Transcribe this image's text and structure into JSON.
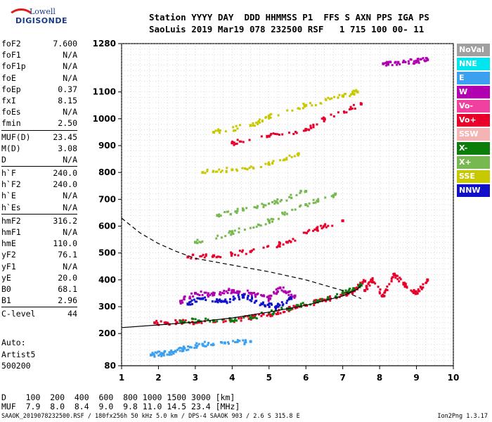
{
  "logo": {
    "line1": "Lowell",
    "line2": "DIGISONDE"
  },
  "header": {
    "line1": "Station YYYY DAY  DDD HHMMSS P1  FFS S AXN PPS IGA PS",
    "line2": "SaoLuis 2019 Mar19 078 232500 RSF   1 715 100 00- 11"
  },
  "params_groups": [
    [
      {
        "name": "foF2",
        "value": "7.600"
      },
      {
        "name": "foF1",
        "value": "N/A"
      },
      {
        "name": "foF1p",
        "value": "N/A"
      },
      {
        "name": "foE",
        "value": "N/A"
      },
      {
        "name": "foEp",
        "value": "0.37"
      },
      {
        "name": "fxI",
        "value": "8.15"
      },
      {
        "name": "foEs",
        "value": "N/A"
      },
      {
        "name": "fmin",
        "value": "2.50"
      }
    ],
    [
      {
        "name": "MUF(D)",
        "value": "23.45"
      },
      {
        "name": "M(D)",
        "value": "3.08"
      },
      {
        "name": "D",
        "value": "N/A"
      }
    ],
    [
      {
        "name": "h`F",
        "value": "240.0"
      },
      {
        "name": "h`F2",
        "value": "240.0"
      },
      {
        "name": "h`E",
        "value": "N/A"
      },
      {
        "name": "h`Es",
        "value": "N/A"
      }
    ],
    [
      {
        "name": "hmF2",
        "value": "316.2"
      },
      {
        "name": "hmF1",
        "value": "N/A"
      },
      {
        "name": "hmE",
        "value": "110.0"
      },
      {
        "name": "yF2",
        "value": "76.1"
      },
      {
        "name": "yF1",
        "value": "N/A"
      },
      {
        "name": "yE",
        "value": "20.0"
      },
      {
        "name": "B0",
        "value": "68.1"
      },
      {
        "name": "B1",
        "value": "2.96"
      }
    ],
    [
      {
        "name": "C-level",
        "value": "44"
      }
    ]
  ],
  "auto": {
    "line1": "Auto:",
    "line2": "Artist5",
    "line3": "500200"
  },
  "dmuf": {
    "d_line": "D    100  200  400  600  800 1000 1500 3000 [km]",
    "muf_line": "MUF  7.9  8.0  8.4  9.0  9.8 11.0 14.5 23.4 [MHz]"
  },
  "footer": {
    "text": "SAAOK_2019078232500.RSF / 180fx256h 50 kHz 5.0 km / DPS-4 SAAOK 903 / 2.6 S 315.8 E",
    "version": "Ion2Png 1.3.17"
  },
  "legend": [
    {
      "label": "NoVal",
      "color": "#a0a0a0"
    },
    {
      "label": "NNE",
      "color": "#00e5ee"
    },
    {
      "label": "E",
      "color": "#3ca0f0"
    },
    {
      "label": "W",
      "color": "#b000b0"
    },
    {
      "label": "Vo-",
      "color": "#f040a0"
    },
    {
      "label": "Vo+",
      "color": "#e8002a"
    },
    {
      "label": "SSW",
      "color": "#f4b4b4"
    },
    {
      "label": "X-",
      "color": "#0a7d0a"
    },
    {
      "label": "X+",
      "color": "#78b850"
    },
    {
      "label": "SSE",
      "color": "#c8c800"
    },
    {
      "label": "NNW",
      "color": "#1010c8"
    }
  ],
  "chart_data": {
    "type": "scatter",
    "xlim": [
      1,
      10
    ],
    "ylim": [
      80,
      1280
    ],
    "x_ticks": [
      1,
      2,
      3,
      4,
      5,
      6,
      7,
      8,
      9,
      10
    ],
    "y_ticks": [
      80,
      200,
      300,
      400,
      500,
      600,
      700,
      800,
      900,
      1000,
      1100,
      1280
    ],
    "grid": true,
    "legend_position": "right",
    "traces": [
      {
        "name": "o-trace",
        "color": "#e8002a",
        "points": [
          [
            1.9,
            240
          ],
          [
            2.5,
            241
          ],
          [
            3.5,
            244
          ],
          [
            4.5,
            258
          ],
          [
            5.0,
            272
          ],
          [
            5.5,
            290
          ],
          [
            6.0,
            305
          ],
          [
            6.5,
            325
          ],
          [
            7.0,
            345
          ],
          [
            7.3,
            360
          ],
          [
            7.6,
            395
          ]
        ]
      },
      {
        "name": "x-trace",
        "color": "#0a7d0a",
        "points": [
          [
            2.6,
            246
          ],
          [
            3.5,
            248
          ],
          [
            4.5,
            260
          ],
          [
            5.5,
            292
          ],
          [
            6.3,
            318
          ],
          [
            7.0,
            350
          ],
          [
            7.5,
            380
          ]
        ]
      },
      {
        "name": "W-spread",
        "color": "#b000b0",
        "points": [
          [
            2.6,
            320
          ],
          [
            3.0,
            350
          ],
          [
            3.5,
            345
          ],
          [
            4.0,
            360
          ],
          [
            4.5,
            350
          ],
          [
            5.0,
            330
          ],
          [
            5.3,
            370
          ],
          [
            5.7,
            340
          ]
        ]
      },
      {
        "name": "NNW-spread",
        "color": "#1010c8",
        "points": [
          [
            2.8,
            310
          ],
          [
            3.2,
            330
          ],
          [
            3.8,
            320
          ],
          [
            4.3,
            340
          ],
          [
            4.8,
            310
          ],
          [
            5.2,
            300
          ],
          [
            5.6,
            330
          ]
        ]
      },
      {
        "name": "spread-F",
        "color": "#e8002a",
        "points": [
          [
            7.6,
            360
          ],
          [
            7.8,
            400
          ],
          [
            8.1,
            340
          ],
          [
            8.4,
            420
          ],
          [
            8.7,
            380
          ],
          [
            9.0,
            350
          ],
          [
            9.3,
            400
          ]
        ]
      },
      {
        "name": "second-hop",
        "color": "#e8002a",
        "points": [
          [
            2.8,
            485
          ],
          [
            3.5,
            490
          ],
          [
            4.5,
            505
          ],
          [
            5.5,
            540
          ],
          [
            6.3,
            590
          ],
          [
            7.0,
            620
          ]
        ]
      },
      {
        "name": "third-hop",
        "color": "#78b850",
        "points": [
          [
            3.0,
            540
          ],
          [
            4.0,
            575
          ],
          [
            5.0,
            620
          ],
          [
            6.0,
            680
          ],
          [
            6.8,
            720
          ]
        ]
      },
      {
        "name": "fourth-hop",
        "color": "#c8c800",
        "points": [
          [
            3.2,
            800
          ],
          [
            4.0,
            810
          ],
          [
            5.0,
            830
          ],
          [
            5.8,
            870
          ]
        ]
      },
      {
        "name": "fifth-hop",
        "color": "#c8c800",
        "points": [
          [
            3.5,
            950
          ],
          [
            4.5,
            975
          ],
          [
            5.0,
            1010
          ],
          [
            6.0,
            1050
          ],
          [
            7.0,
            1085
          ],
          [
            7.4,
            1100
          ]
        ]
      },
      {
        "name": "sixth-hop",
        "color": "#b000b0",
        "points": [
          [
            8.1,
            1205
          ],
          [
            8.5,
            1210
          ],
          [
            9.0,
            1215
          ],
          [
            9.3,
            1220
          ]
        ]
      },
      {
        "name": "low-echo",
        "color": "#3ca0f0",
        "points": [
          [
            1.8,
            120
          ],
          [
            2.1,
            125
          ],
          [
            2.4,
            130
          ],
          [
            2.7,
            145
          ],
          [
            3.2,
            160
          ],
          [
            3.8,
            165
          ],
          [
            4.5,
            170
          ]
        ]
      },
      {
        "name": "ext-band",
        "color": "#e8002a",
        "points": [
          [
            4.0,
            910
          ],
          [
            5.0,
            935
          ],
          [
            6.0,
            960
          ],
          [
            6.5,
            1000
          ],
          [
            7.5,
            1055
          ]
        ]
      },
      {
        "name": "high-band",
        "color": "#78b850",
        "points": [
          [
            3.6,
            640
          ],
          [
            4.3,
            660
          ],
          [
            5.2,
            690
          ],
          [
            6.0,
            730
          ]
        ]
      }
    ],
    "profile_curve": {
      "style": "solid",
      "points": [
        [
          1.0,
          222
        ],
        [
          2.0,
          232
        ],
        [
          3.0,
          243
        ],
        [
          4.0,
          258
        ],
        [
          5.0,
          280
        ],
        [
          6.0,
          305
        ],
        [
          7.0,
          340
        ],
        [
          7.4,
          365
        ],
        [
          7.5,
          380
        ]
      ]
    },
    "dashed_curve": {
      "style": "dashed",
      "points": [
        [
          1.0,
          630
        ],
        [
          1.5,
          575
        ],
        [
          2.0,
          535
        ],
        [
          2.5,
          505
        ],
        [
          3.0,
          480
        ],
        [
          4.0,
          455
        ],
        [
          5.0,
          430
        ],
        [
          6.0,
          400
        ],
        [
          7.0,
          360
        ],
        [
          7.5,
          330
        ]
      ]
    }
  }
}
